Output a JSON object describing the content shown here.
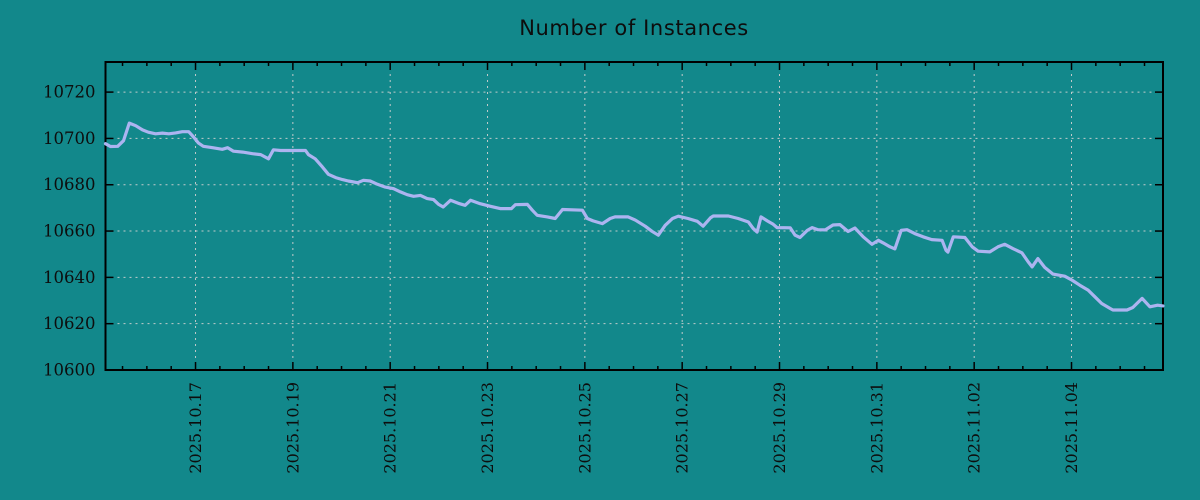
{
  "chart_data": {
    "type": "line",
    "title": "Number of Instances",
    "grid": "dotted",
    "legend": "none",
    "colors": {
      "background": "#12888B",
      "line": "#ACB4F0",
      "grid": "#C2CBCB",
      "frame": "#000000",
      "text": "#0D0D0D"
    },
    "y_axis": {
      "min": 10600,
      "max": 10733,
      "ticks": [
        10600,
        10620,
        10640,
        10660,
        10680,
        10700,
        10720
      ]
    },
    "x_axis": {
      "unit": "days relative to 2025.10.17",
      "start_day": -1.85,
      "end_day": 19.88,
      "minor_tick_step_days": 0.5,
      "major_ticks": [
        {
          "label": "2025.10.17",
          "day": 0
        },
        {
          "label": "2025.10.19",
          "day": 2
        },
        {
          "label": "2025.10.21",
          "day": 4
        },
        {
          "label": "2025.10.23",
          "day": 6
        },
        {
          "label": "2025.10.25",
          "day": 8
        },
        {
          "label": "2025.10.27",
          "day": 10
        },
        {
          "label": "2025.10.29",
          "day": 12
        },
        {
          "label": "2025.10.31",
          "day": 14
        },
        {
          "label": "2025.11.02",
          "day": 16
        },
        {
          "label": "2025.11.04",
          "day": 18
        }
      ]
    },
    "series": [
      {
        "name": "Number of Instances",
        "points": [
          [
            -1.85,
            10697.7
          ],
          [
            -1.75,
            10696.5
          ],
          [
            -1.6,
            10696.6
          ],
          [
            -1.48,
            10699.0
          ],
          [
            -1.36,
            10706.6
          ],
          [
            -1.23,
            10705.5
          ],
          [
            -1.09,
            10703.7
          ],
          [
            -0.97,
            10702.7
          ],
          [
            -0.82,
            10702.0
          ],
          [
            -0.68,
            10702.3
          ],
          [
            -0.55,
            10702.0
          ],
          [
            -0.41,
            10702.4
          ],
          [
            -0.27,
            10702.9
          ],
          [
            -0.14,
            10702.9
          ],
          [
            -0.04,
            10700.6
          ],
          [
            0.06,
            10698.0
          ],
          [
            0.16,
            10696.6
          ],
          [
            0.35,
            10696.0
          ],
          [
            0.55,
            10695.3
          ],
          [
            0.66,
            10696.0
          ],
          [
            0.78,
            10694.5
          ],
          [
            0.97,
            10694.1
          ],
          [
            1.17,
            10693.4
          ],
          [
            1.34,
            10693.0
          ],
          [
            1.5,
            10691.2
          ],
          [
            1.6,
            10695.1
          ],
          [
            1.75,
            10694.8
          ],
          [
            2.26,
            10694.8
          ],
          [
            2.32,
            10693.0
          ],
          [
            2.46,
            10691.2
          ],
          [
            2.61,
            10687.6
          ],
          [
            2.73,
            10684.5
          ],
          [
            2.88,
            10683.1
          ],
          [
            3.02,
            10682.2
          ],
          [
            3.14,
            10681.6
          ],
          [
            3.33,
            10680.9
          ],
          [
            3.45,
            10681.9
          ],
          [
            3.59,
            10681.6
          ],
          [
            3.74,
            10680.2
          ],
          [
            3.9,
            10679.0
          ],
          [
            4.07,
            10678.3
          ],
          [
            4.21,
            10676.9
          ],
          [
            4.35,
            10675.7
          ],
          [
            4.48,
            10675.0
          ],
          [
            4.62,
            10675.4
          ],
          [
            4.76,
            10674.0
          ],
          [
            4.89,
            10673.6
          ],
          [
            4.99,
            10671.6
          ],
          [
            5.09,
            10670.4
          ],
          [
            5.24,
            10673.3
          ],
          [
            5.4,
            10672.0
          ],
          [
            5.54,
            10671.1
          ],
          [
            5.65,
            10673.3
          ],
          [
            5.85,
            10671.8
          ],
          [
            6.06,
            10670.7
          ],
          [
            6.26,
            10669.7
          ],
          [
            6.49,
            10669.7
          ],
          [
            6.57,
            10671.4
          ],
          [
            6.82,
            10671.5
          ],
          [
            6.92,
            10669.0
          ],
          [
            7.02,
            10666.8
          ],
          [
            7.23,
            10666.1
          ],
          [
            7.39,
            10665.4
          ],
          [
            7.54,
            10669.3
          ],
          [
            7.95,
            10669.0
          ],
          [
            8.05,
            10665.4
          ],
          [
            8.17,
            10664.4
          ],
          [
            8.36,
            10663.2
          ],
          [
            8.52,
            10665.4
          ],
          [
            8.62,
            10666.1
          ],
          [
            8.89,
            10666.1
          ],
          [
            9.04,
            10664.7
          ],
          [
            9.24,
            10662.1
          ],
          [
            9.38,
            10659.9
          ],
          [
            9.51,
            10658.2
          ],
          [
            9.65,
            10662.5
          ],
          [
            9.8,
            10665.4
          ],
          [
            9.92,
            10666.4
          ],
          [
            10.12,
            10665.4
          ],
          [
            10.31,
            10664.2
          ],
          [
            10.43,
            10662.1
          ],
          [
            10.58,
            10665.7
          ],
          [
            10.64,
            10666.5
          ],
          [
            10.95,
            10666.5
          ],
          [
            11.15,
            10665.4
          ],
          [
            11.36,
            10663.9
          ],
          [
            11.46,
            10661.1
          ],
          [
            11.54,
            10659.6
          ],
          [
            11.62,
            10666.1
          ],
          [
            11.75,
            10664.4
          ],
          [
            11.87,
            10662.9
          ],
          [
            11.95,
            10661.5
          ],
          [
            12.22,
            10661.4
          ],
          [
            12.32,
            10658.2
          ],
          [
            12.42,
            10657.2
          ],
          [
            12.57,
            10660.3
          ],
          [
            12.67,
            10661.5
          ],
          [
            12.79,
            10660.6
          ],
          [
            12.94,
            10660.5
          ],
          [
            13.1,
            10662.6
          ],
          [
            13.24,
            10662.8
          ],
          [
            13.41,
            10659.8
          ],
          [
            13.55,
            10661.3
          ],
          [
            13.72,
            10657.5
          ],
          [
            13.9,
            10654.3
          ],
          [
            14.03,
            10656.0
          ],
          [
            14.13,
            10654.9
          ],
          [
            14.27,
            10653.2
          ],
          [
            14.37,
            10652.3
          ],
          [
            14.5,
            10660.3
          ],
          [
            14.62,
            10660.6
          ],
          [
            14.78,
            10658.9
          ],
          [
            14.95,
            10657.5
          ],
          [
            15.13,
            10656.3
          ],
          [
            15.34,
            10656.0
          ],
          [
            15.42,
            10651.7
          ],
          [
            15.46,
            10650.9
          ],
          [
            15.57,
            10657.5
          ],
          [
            15.81,
            10657.2
          ],
          [
            15.96,
            10653.2
          ],
          [
            16.08,
            10651.3
          ],
          [
            16.32,
            10651.0
          ],
          [
            16.49,
            10653.2
          ],
          [
            16.63,
            10654.3
          ],
          [
            16.8,
            10652.4
          ],
          [
            16.98,
            10650.6
          ],
          [
            17.11,
            10646.7
          ],
          [
            17.19,
            10644.5
          ],
          [
            17.31,
            10648.1
          ],
          [
            17.45,
            10644.3
          ],
          [
            17.62,
            10641.4
          ],
          [
            17.76,
            10640.9
          ],
          [
            17.86,
            10640.5
          ],
          [
            18.01,
            10638.8
          ],
          [
            18.17,
            10636.6
          ],
          [
            18.34,
            10634.5
          ],
          [
            18.48,
            10631.6
          ],
          [
            18.62,
            10628.7
          ],
          [
            18.79,
            10626.6
          ],
          [
            18.85,
            10625.9
          ],
          [
            19.14,
            10625.9
          ],
          [
            19.26,
            10627.0
          ],
          [
            19.45,
            10630.9
          ],
          [
            19.61,
            10627.3
          ],
          [
            19.77,
            10628.0
          ],
          [
            19.88,
            10627.7
          ]
        ]
      }
    ]
  }
}
